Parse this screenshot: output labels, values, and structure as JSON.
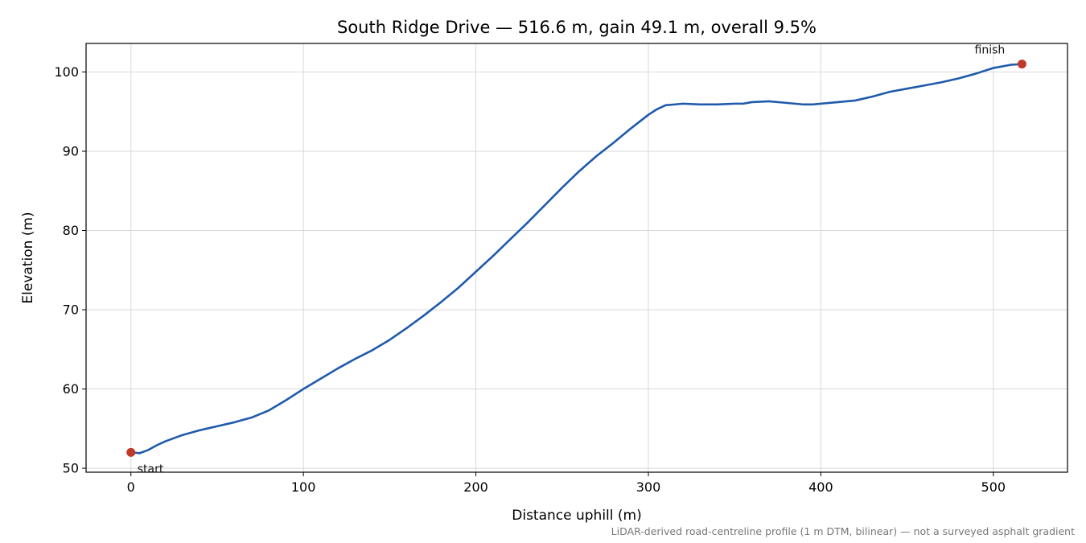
{
  "chart_data": {
    "type": "line",
    "title": "South Ridge Drive — 516.6 m, gain 49.1 m, overall 9.5%",
    "xlabel": "Distance uphill (m)",
    "ylabel": "Elevation (m)",
    "xlim": [
      -26,
      543
    ],
    "ylim": [
      49.5,
      103.6
    ],
    "xticks": [
      0,
      100,
      200,
      300,
      400,
      500
    ],
    "yticks": [
      50,
      60,
      70,
      80,
      90,
      100
    ],
    "grid": true,
    "series": [
      {
        "color": "#1f5aab",
        "x": [
          0,
          5,
          10,
          15,
          20,
          30,
          40,
          50,
          60,
          70,
          80,
          90,
          100,
          110,
          120,
          130,
          140,
          150,
          160,
          170,
          180,
          190,
          200,
          210,
          220,
          230,
          240,
          250,
          260,
          270,
          280,
          290,
          300,
          305,
          310,
          315,
          320,
          330,
          340,
          350,
          355,
          360,
          370,
          380,
          385,
          390,
          395,
          400,
          410,
          420,
          430,
          440,
          450,
          460,
          470,
          480,
          490,
          500,
          510,
          516.6
        ],
        "y": [
          52.0,
          51.9,
          52.3,
          52.9,
          53.4,
          54.2,
          54.8,
          55.3,
          55.8,
          56.4,
          57.3,
          58.6,
          60.0,
          61.3,
          62.6,
          63.8,
          64.9,
          66.2,
          67.7,
          69.3,
          71.0,
          72.8,
          74.8,
          76.8,
          78.9,
          81.0,
          83.2,
          85.4,
          87.5,
          89.4,
          91.1,
          92.9,
          94.6,
          95.3,
          95.8,
          95.9,
          96.0,
          95.9,
          95.9,
          96.0,
          96.0,
          96.2,
          96.3,
          96.1,
          96.0,
          95.9,
          95.9,
          96.0,
          96.2,
          96.4,
          96.9,
          97.5,
          97.9,
          98.3,
          98.7,
          99.2,
          99.8,
          100.5,
          100.9,
          101.0
        ]
      }
    ],
    "markers": [
      {
        "x": 0,
        "y": 52.0,
        "label": "start",
        "color": "#c0392b"
      },
      {
        "x": 516.6,
        "y": 101.0,
        "label": "finish",
        "color": "#c0392b"
      }
    ],
    "footnote": "LiDAR-derived road-centreline profile (1 m DTM, bilinear) — not a surveyed asphalt gradient"
  }
}
